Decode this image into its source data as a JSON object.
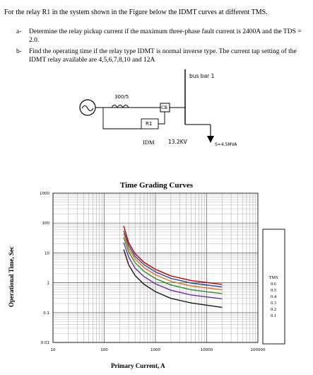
{
  "problem": {
    "intro": "For the relay R1 in the system shown in the Figure below the IDMT curves at different TMS.",
    "questions": [
      {
        "label": "a-",
        "text": "Determine the relay pickup current if the maximum three-phase fault current is 2400A and the TDS = 2.0."
      },
      {
        "label": "b-",
        "text": "Find the operating time if the relay type IDMT is normal inverse type. The current tap setting of the IDMT relay available are 4,5,6,7,8,10 and 12A"
      }
    ]
  },
  "diagram": {
    "bus_label": "bus bar 1",
    "ct_ratio": "300/5",
    "cb_label": "CB",
    "relay_label": "R1",
    "idm_label": "IDM",
    "voltage_label": "13.2KV",
    "load_label": "S=4.5MVA"
  },
  "chart_data": {
    "type": "line",
    "title": "Time Grading Curves",
    "xlabel": "Primary Current, A",
    "ylabel": "Operational Time, Sec",
    "x_scale": "log",
    "y_scale": "log",
    "xlim": [
      10,
      100000
    ],
    "ylim": [
      0.01,
      1000
    ],
    "x_ticks": [
      "10",
      "100",
      "1000",
      "10000",
      "100000"
    ],
    "y_ticks": [
      "1000",
      "100",
      "10",
      "1",
      "0.1",
      "0.01"
    ],
    "grid": true,
    "legend_title": "TMS",
    "legend_position": "right",
    "series": [
      {
        "name": "0.6",
        "color": "#c00000",
        "x": [
          240,
          300,
          400,
          600,
          1000,
          2000,
          5000,
          20000
        ],
        "y": [
          80,
          22,
          9.5,
          4.8,
          2.8,
          1.7,
          1.18,
          0.88
        ]
      },
      {
        "name": "0.5",
        "color": "#1f4e9c",
        "x": [
          240,
          300,
          400,
          600,
          1000,
          2000,
          5000,
          20000
        ],
        "y": [
          55,
          18,
          7.8,
          4.0,
          2.3,
          1.4,
          0.98,
          0.72
        ]
      },
      {
        "name": "0.4",
        "color": "#e07020",
        "x": [
          240,
          300,
          400,
          600,
          1000,
          2000,
          5000,
          20000
        ],
        "y": [
          44,
          14.5,
          6.3,
          3.2,
          1.85,
          1.12,
          0.78,
          0.58
        ]
      },
      {
        "name": "0.3",
        "color": "#2e8b2e",
        "x": [
          240,
          300,
          400,
          600,
          1000,
          2000,
          5000,
          20000
        ],
        "y": [
          33,
          11,
          4.7,
          2.4,
          1.38,
          0.84,
          0.58,
          0.43
        ]
      },
      {
        "name": "0.2",
        "color": "#7030a0",
        "x": [
          240,
          300,
          400,
          600,
          1000,
          2000,
          5000,
          20000
        ],
        "y": [
          22,
          7.3,
          3.1,
          1.6,
          0.92,
          0.56,
          0.39,
          0.29
        ]
      },
      {
        "name": "0.1",
        "color": "#1a1a1a",
        "x": [
          240,
          300,
          400,
          600,
          1000,
          2000,
          5000,
          20000
        ],
        "y": [
          13,
          4.0,
          1.75,
          0.88,
          0.5,
          0.3,
          0.21,
          0.15
        ]
      }
    ]
  }
}
